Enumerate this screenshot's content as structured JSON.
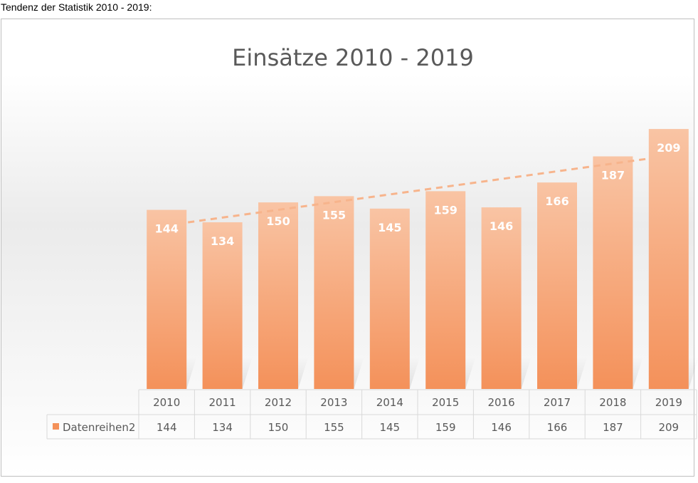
{
  "page": {
    "heading": "Tendenz der Statistik 2010 - 2019:"
  },
  "colors": {
    "bar_top": "#f9c4a4",
    "bar_bottom": "#f4915a",
    "trend": "#f7b48c",
    "grid": "#d9d9d9",
    "text": "#595959"
  },
  "chart_data": {
    "type": "bar",
    "title": "Einsätze 2010 - 2019",
    "categories": [
      "2010",
      "2011",
      "2012",
      "2013",
      "2014",
      "2015",
      "2016",
      "2017",
      "2018",
      "2019"
    ],
    "series": [
      {
        "name": "Datenreihen2",
        "values": [
          144,
          134,
          150,
          155,
          145,
          159,
          146,
          166,
          187,
          209
        ]
      }
    ],
    "data_labels": true,
    "trendline": "linear",
    "data_table": true,
    "legend": "data-table",
    "grid": false
  }
}
